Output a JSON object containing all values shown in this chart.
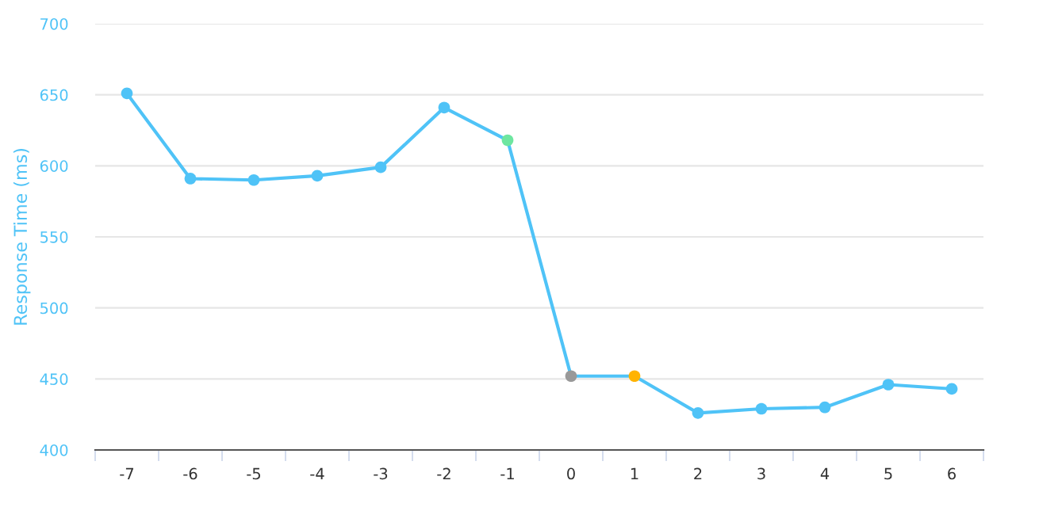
{
  "chart_data": {
    "type": "line",
    "ylabel": "Response Time (ms)",
    "categories": [
      "-7",
      "-6",
      "-5",
      "-4",
      "-3",
      "-2",
      "-1",
      "0",
      "1",
      "2",
      "3",
      "4",
      "5",
      "6"
    ],
    "series": [
      {
        "color": "#4fc3f7",
        "values": [
          651,
          591,
          590,
          593,
          599,
          641,
          618,
          452,
          452,
          426,
          429,
          430,
          446,
          443
        ],
        "colors": [
          "#4fc3f7",
          "#4fc3f7",
          "#4fc3f7",
          "#4fc3f7",
          "#4fc3f7",
          "#4fc3f7",
          "#6ee6a0",
          "#999999",
          "#ffb300",
          "#4fc3f7",
          "#4fc3f7",
          "#4fc3f7",
          "#4fc3f7",
          "#4fc3f7"
        ]
      }
    ],
    "ylim": [
      400,
      700
    ],
    "yticks": [
      400,
      450,
      500,
      550,
      600,
      650,
      700
    ],
    "grid": "y",
    "marker": "circle",
    "line_style": "solid"
  }
}
